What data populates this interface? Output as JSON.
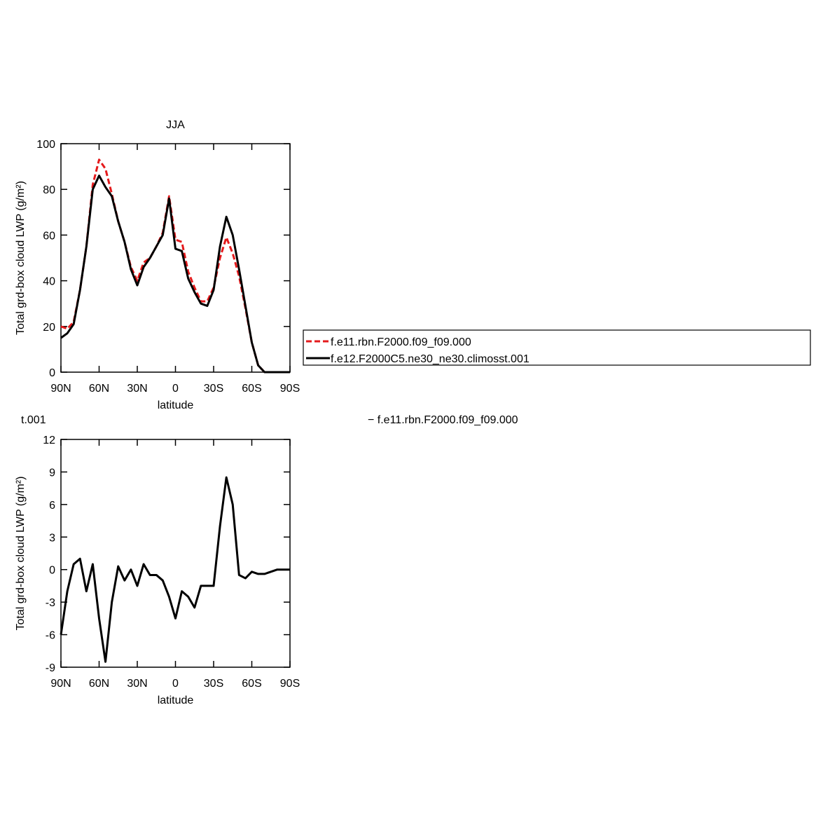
{
  "chart_data": [
    {
      "type": "line",
      "title": "JJA",
      "ylabel": "Total grd-box cloud LWP (g/m²)",
      "xlabel": "latitude",
      "x": [
        90,
        85,
        80,
        75,
        70,
        65,
        60,
        55,
        50,
        45,
        40,
        35,
        30,
        25,
        20,
        15,
        10,
        5,
        0,
        -5,
        -10,
        -15,
        -20,
        -25,
        -30,
        -35,
        -40,
        -45,
        -50,
        -55,
        -60,
        -65,
        -70,
        -75,
        -80,
        -85,
        -90
      ],
      "xlim": [
        90,
        -90
      ],
      "xticks": [
        {
          "value": 90,
          "label": "90N"
        },
        {
          "value": 60,
          "label": "60N"
        },
        {
          "value": 30,
          "label": "30N"
        },
        0,
        {
          "value": -30,
          "label": "30S"
        },
        {
          "value": -60,
          "label": "60S"
        },
        {
          "value": -90,
          "label": "90S"
        }
      ],
      "ylim": [
        0,
        100
      ],
      "yticks": [
        0,
        20,
        40,
        60,
        80,
        100
      ],
      "legend": "right",
      "series": [
        {
          "name": "f.e11.rbn.F2000.f09_f09.000",
          "color": "#e41a1c",
          "dashed": true,
          "values": [
            20,
            19,
            22,
            36,
            55,
            82,
            93,
            89,
            78,
            66,
            57,
            46,
            40,
            48,
            50,
            55,
            61,
            77,
            58,
            57,
            44,
            37,
            31,
            31,
            37,
            50,
            59,
            52,
            42,
            28,
            13,
            3,
            0,
            0,
            0,
            0,
            0
          ]
        },
        {
          "name": "f.e12.F2000C5.ne30_ne30.climosst.001",
          "color": "#000000",
          "dashed": false,
          "values": [
            15,
            17,
            21,
            36,
            55,
            80,
            86,
            81,
            77,
            66,
            57,
            45,
            38,
            46,
            50,
            55,
            60,
            76,
            54,
            53,
            41,
            35,
            30,
            29,
            36,
            55,
            68,
            60,
            45,
            29,
            13,
            3,
            0,
            0,
            0,
            0,
            0
          ]
        }
      ]
    },
    {
      "type": "line",
      "annotations": [
        "t.001",
        "− f.e11.rbn.F2000.f09_f09.000"
      ],
      "ylabel": "Total grd-box cloud LWP (g/m²)",
      "xlabel": "latitude",
      "x": [
        90,
        85,
        80,
        75,
        70,
        65,
        60,
        55,
        50,
        45,
        40,
        35,
        30,
        25,
        20,
        15,
        10,
        5,
        0,
        -5,
        -10,
        -15,
        -20,
        -25,
        -30,
        -35,
        -40,
        -45,
        -50,
        -55,
        -60,
        -65,
        -70,
        -75,
        -80,
        -85,
        -90
      ],
      "xlim": [
        90,
        -90
      ],
      "xticks": [
        {
          "value": 90,
          "label": "90N"
        },
        {
          "value": 60,
          "label": "60N"
        },
        {
          "value": 30,
          "label": "30N"
        },
        0,
        {
          "value": -30,
          "label": "30S"
        },
        {
          "value": -60,
          "label": "60S"
        },
        {
          "value": -90,
          "label": "90S"
        }
      ],
      "ylim": [
        -9,
        12
      ],
      "yticks": [
        -9,
        -6,
        -3,
        0,
        3,
        6,
        9,
        12
      ],
      "series": [
        {
          "color": "#000000",
          "dashed": false,
          "values": [
            -6,
            -2,
            0.5,
            1,
            -2,
            0.5,
            -4.5,
            -8.5,
            -3,
            0.3,
            -1,
            0,
            -1.5,
            0.5,
            -0.5,
            -0.5,
            -1,
            -2.5,
            -4.5,
            -2,
            -2.5,
            -3.5,
            -1.5,
            -1.5,
            -1.5,
            4,
            8.5,
            6,
            -0.5,
            -0.8,
            -0.2,
            -0.4,
            -0.4,
            -0.2,
            0,
            0,
            0
          ]
        }
      ]
    }
  ]
}
